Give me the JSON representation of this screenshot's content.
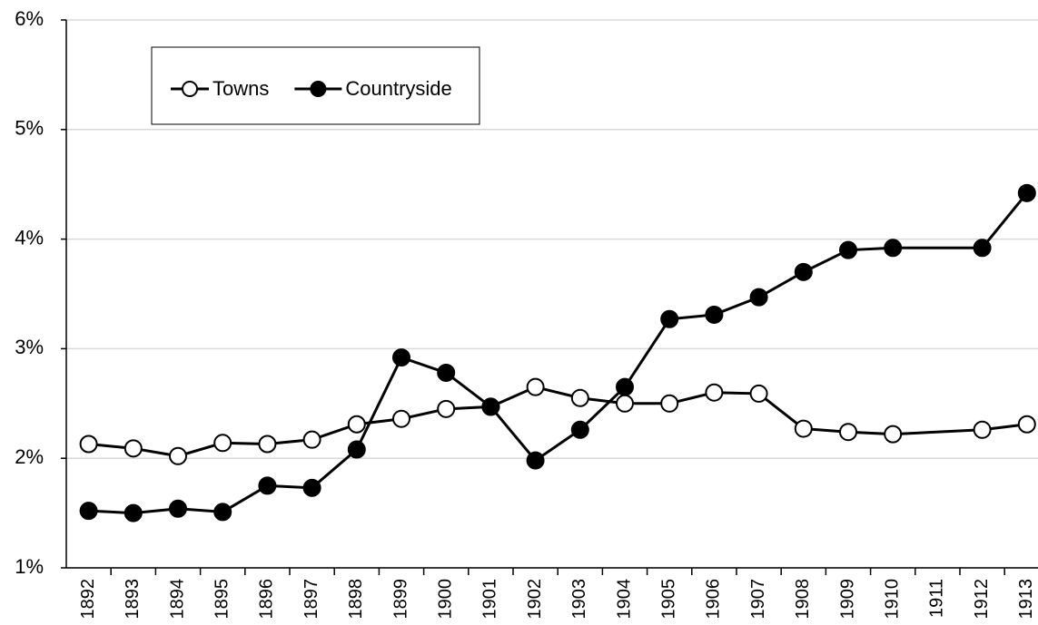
{
  "chart_data": {
    "type": "line",
    "categories": [
      "1892",
      "1893",
      "1894",
      "1895",
      "1896",
      "1897",
      "1898",
      "1899",
      "1900",
      "1901",
      "1902",
      "1903",
      "1904",
      "1905",
      "1906",
      "1907",
      "1908",
      "1909",
      "1910",
      "1911",
      "1912",
      "1913"
    ],
    "series": [
      {
        "name": "Towns",
        "color": "#000000",
        "marker_fill": "#ffffff",
        "values": [
          2.13,
          2.09,
          2.02,
          2.14,
          2.13,
          2.17,
          2.31,
          2.36,
          2.45,
          2.47,
          2.65,
          2.55,
          2.5,
          2.5,
          2.6,
          2.59,
          2.27,
          2.24,
          2.22,
          null,
          2.26,
          2.31
        ]
      },
      {
        "name": "Countryside",
        "color": "#000000",
        "marker_fill": "#000000",
        "values": [
          1.52,
          1.5,
          1.54,
          1.51,
          1.75,
          1.73,
          2.08,
          2.92,
          2.78,
          2.47,
          1.98,
          2.26,
          2.65,
          3.27,
          3.31,
          3.47,
          3.7,
          3.9,
          3.92,
          null,
          3.92,
          4.42
        ]
      }
    ],
    "ylim": [
      1,
      6
    ],
    "yticks": [
      {
        "value": 1,
        "label": "1%"
      },
      {
        "value": 2,
        "label": "2%"
      },
      {
        "value": 3,
        "label": "3%"
      },
      {
        "value": 4,
        "label": "4%"
      },
      {
        "value": 5,
        "label": "5%"
      },
      {
        "value": 6,
        "label": "6%"
      }
    ],
    "grid": true,
    "legend": "upper left"
  }
}
